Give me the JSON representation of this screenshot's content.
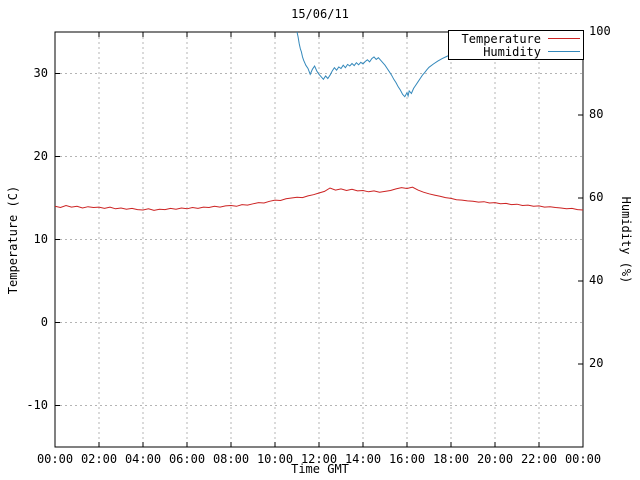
{
  "title": "15/06/11",
  "axes": {
    "x_label": "Time GMT",
    "y_left_label": "Temperature (C)",
    "y_right_label": "Humidity (%)"
  },
  "legend": {
    "entries": [
      {
        "label": "Temperature",
        "color": "#cc2222"
      },
      {
        "label": "Humidity",
        "color": "#3388bb"
      }
    ]
  },
  "chart_data": {
    "type": "line",
    "title": "15/06/11",
    "xlabel": "Time GMT",
    "ylabel_left": "Temperature (C)",
    "ylabel_right": "Humidity (%)",
    "grid": true,
    "legend_position": "top-right-inside",
    "x_ticks": [
      "00:00",
      "02:00",
      "04:00",
      "06:00",
      "08:00",
      "10:00",
      "12:00",
      "14:00",
      "16:00",
      "18:00",
      "20:00",
      "22:00",
      "00:00"
    ],
    "x_tick_hours": [
      0,
      2,
      4,
      6,
      8,
      10,
      12,
      14,
      16,
      18,
      20,
      22,
      24
    ],
    "x_range_hours": [
      0,
      24
    ],
    "y_left_ticks": [
      30,
      20,
      10,
      0,
      -10
    ],
    "y_left_range": [
      -15,
      35
    ],
    "y_right_ticks": [
      100,
      80,
      60,
      40,
      20
    ],
    "y_right_range": [
      0,
      100
    ],
    "series": [
      {
        "name": "Temperature",
        "axis": "left",
        "color": "#cc2222",
        "points": [
          [
            0,
            14.0
          ],
          [
            0.25,
            13.85
          ],
          [
            0.5,
            14.1
          ],
          [
            0.75,
            13.9
          ],
          [
            1,
            14.0
          ],
          [
            1.25,
            13.8
          ],
          [
            1.5,
            13.95
          ],
          [
            1.75,
            13.85
          ],
          [
            2,
            13.9
          ],
          [
            2.25,
            13.75
          ],
          [
            2.5,
            13.9
          ],
          [
            2.75,
            13.7
          ],
          [
            3,
            13.8
          ],
          [
            3.25,
            13.65
          ],
          [
            3.5,
            13.75
          ],
          [
            3.75,
            13.6
          ],
          [
            4,
            13.55
          ],
          [
            4.25,
            13.7
          ],
          [
            4.5,
            13.5
          ],
          [
            4.75,
            13.65
          ],
          [
            5,
            13.6
          ],
          [
            5.25,
            13.75
          ],
          [
            5.5,
            13.65
          ],
          [
            5.75,
            13.8
          ],
          [
            6,
            13.7
          ],
          [
            6.25,
            13.85
          ],
          [
            6.5,
            13.75
          ],
          [
            6.75,
            13.9
          ],
          [
            7,
            13.85
          ],
          [
            7.25,
            14.0
          ],
          [
            7.5,
            13.9
          ],
          [
            7.75,
            14.05
          ],
          [
            8,
            14.1
          ],
          [
            8.25,
            14.0
          ],
          [
            8.5,
            14.2
          ],
          [
            8.75,
            14.15
          ],
          [
            9,
            14.3
          ],
          [
            9.25,
            14.45
          ],
          [
            9.5,
            14.4
          ],
          [
            9.75,
            14.6
          ],
          [
            10,
            14.75
          ],
          [
            10.25,
            14.7
          ],
          [
            10.5,
            14.9
          ],
          [
            10.75,
            15.0
          ],
          [
            11,
            15.1
          ],
          [
            11.25,
            15.05
          ],
          [
            11.5,
            15.25
          ],
          [
            11.75,
            15.4
          ],
          [
            12,
            15.6
          ],
          [
            12.25,
            15.8
          ],
          [
            12.5,
            16.2
          ],
          [
            12.75,
            15.95
          ],
          [
            13,
            16.1
          ],
          [
            13.25,
            15.9
          ],
          [
            13.5,
            16.05
          ],
          [
            13.75,
            15.85
          ],
          [
            14,
            15.9
          ],
          [
            14.25,
            15.75
          ],
          [
            14.5,
            15.85
          ],
          [
            14.75,
            15.7
          ],
          [
            15,
            15.8
          ],
          [
            15.25,
            15.9
          ],
          [
            15.5,
            16.1
          ],
          [
            15.75,
            16.25
          ],
          [
            16,
            16.15
          ],
          [
            16.25,
            16.3
          ],
          [
            16.5,
            15.95
          ],
          [
            16.75,
            15.7
          ],
          [
            17,
            15.5
          ],
          [
            17.25,
            15.35
          ],
          [
            17.5,
            15.2
          ],
          [
            17.75,
            15.05
          ],
          [
            18,
            14.95
          ],
          [
            18.25,
            14.8
          ],
          [
            18.5,
            14.75
          ],
          [
            18.75,
            14.65
          ],
          [
            19,
            14.6
          ],
          [
            19.25,
            14.5
          ],
          [
            19.5,
            14.55
          ],
          [
            19.75,
            14.4
          ],
          [
            20,
            14.45
          ],
          [
            20.25,
            14.3
          ],
          [
            20.5,
            14.35
          ],
          [
            20.75,
            14.2
          ],
          [
            21,
            14.25
          ],
          [
            21.25,
            14.1
          ],
          [
            21.5,
            14.15
          ],
          [
            21.75,
            14.0
          ],
          [
            22,
            14.05
          ],
          [
            22.25,
            13.9
          ],
          [
            22.5,
            13.95
          ],
          [
            22.75,
            13.85
          ],
          [
            23,
            13.8
          ],
          [
            23.25,
            13.7
          ],
          [
            23.5,
            13.75
          ],
          [
            23.75,
            13.6
          ],
          [
            24,
            13.55
          ]
        ]
      },
      {
        "name": "Humidity",
        "axis": "right",
        "color": "#3388bb",
        "points": [
          [
            11.0,
            100
          ],
          [
            11.05,
            98.8
          ],
          [
            11.1,
            97.2
          ],
          [
            11.15,
            96.0
          ],
          [
            11.2,
            95.2
          ],
          [
            11.25,
            94.0
          ],
          [
            11.3,
            93.2
          ],
          [
            11.35,
            92.6
          ],
          [
            11.4,
            92.0
          ],
          [
            11.5,
            91.2
          ],
          [
            11.6,
            89.8
          ],
          [
            11.7,
            91.0
          ],
          [
            11.8,
            91.8
          ],
          [
            11.9,
            90.6
          ],
          [
            12.0,
            89.8
          ],
          [
            12.1,
            89.2
          ],
          [
            12.2,
            88.6
          ],
          [
            12.3,
            89.4
          ],
          [
            12.4,
            88.8
          ],
          [
            12.5,
            89.6
          ],
          [
            12.6,
            90.6
          ],
          [
            12.7,
            91.4
          ],
          [
            12.8,
            90.8
          ],
          [
            12.9,
            91.6
          ],
          [
            13.0,
            91.2
          ],
          [
            13.1,
            92.0
          ],
          [
            13.2,
            91.4
          ],
          [
            13.3,
            92.2
          ],
          [
            13.4,
            91.8
          ],
          [
            13.5,
            92.4
          ],
          [
            13.6,
            91.9
          ],
          [
            13.7,
            92.6
          ],
          [
            13.8,
            92.1
          ],
          [
            13.9,
            92.7
          ],
          [
            14.0,
            92.3
          ],
          [
            14.1,
            92.9
          ],
          [
            14.2,
            93.3
          ],
          [
            14.3,
            92.8
          ],
          [
            14.4,
            93.6
          ],
          [
            14.5,
            94.0
          ],
          [
            14.6,
            93.4
          ],
          [
            14.7,
            93.8
          ],
          [
            14.8,
            93.2
          ],
          [
            14.9,
            92.6
          ],
          [
            15.0,
            92.0
          ],
          [
            15.1,
            91.2
          ],
          [
            15.2,
            90.4
          ],
          [
            15.3,
            89.6
          ],
          [
            15.4,
            88.6
          ],
          [
            15.5,
            87.8
          ],
          [
            15.6,
            86.8
          ],
          [
            15.7,
            86.0
          ],
          [
            15.8,
            85.0
          ],
          [
            15.9,
            84.4
          ],
          [
            16.0,
            85.4
          ],
          [
            16.05,
            84.6
          ],
          [
            16.1,
            85.8
          ],
          [
            16.2,
            85.2
          ],
          [
            16.3,
            86.4
          ],
          [
            16.4,
            87.2
          ],
          [
            16.5,
            88.0
          ],
          [
            16.6,
            88.8
          ],
          [
            16.7,
            89.6
          ],
          [
            16.8,
            90.2
          ],
          [
            16.9,
            90.9
          ],
          [
            17.0,
            91.5
          ],
          [
            17.2,
            92.3
          ],
          [
            17.4,
            93.0
          ],
          [
            17.6,
            93.6
          ],
          [
            17.8,
            94.1
          ],
          [
            18.0,
            94.6
          ],
          [
            18.2,
            95.0
          ],
          [
            18.4,
            95.4
          ],
          [
            18.6,
            95.0
          ],
          [
            18.8,
            95.5
          ],
          [
            19.0,
            95.1
          ],
          [
            19.25,
            95.4
          ],
          [
            19.5,
            95.0
          ],
          [
            19.75,
            95.3
          ],
          [
            20.0,
            95.6
          ],
          [
            20.25,
            95.2
          ],
          [
            20.5,
            95.5
          ],
          [
            20.75,
            95.8
          ],
          [
            21.0,
            95.4
          ],
          [
            21.25,
            95.7
          ],
          [
            21.5,
            95.3
          ],
          [
            21.75,
            95.6
          ],
          [
            22.0,
            95.9
          ],
          [
            22.25,
            95.5
          ],
          [
            22.5,
            95.8
          ],
          [
            22.75,
            95.4
          ],
          [
            23.0,
            95.7
          ],
          [
            23.25,
            96.0
          ],
          [
            23.5,
            95.6
          ],
          [
            23.75,
            95.9
          ],
          [
            24.0,
            95.7
          ]
        ]
      }
    ]
  }
}
